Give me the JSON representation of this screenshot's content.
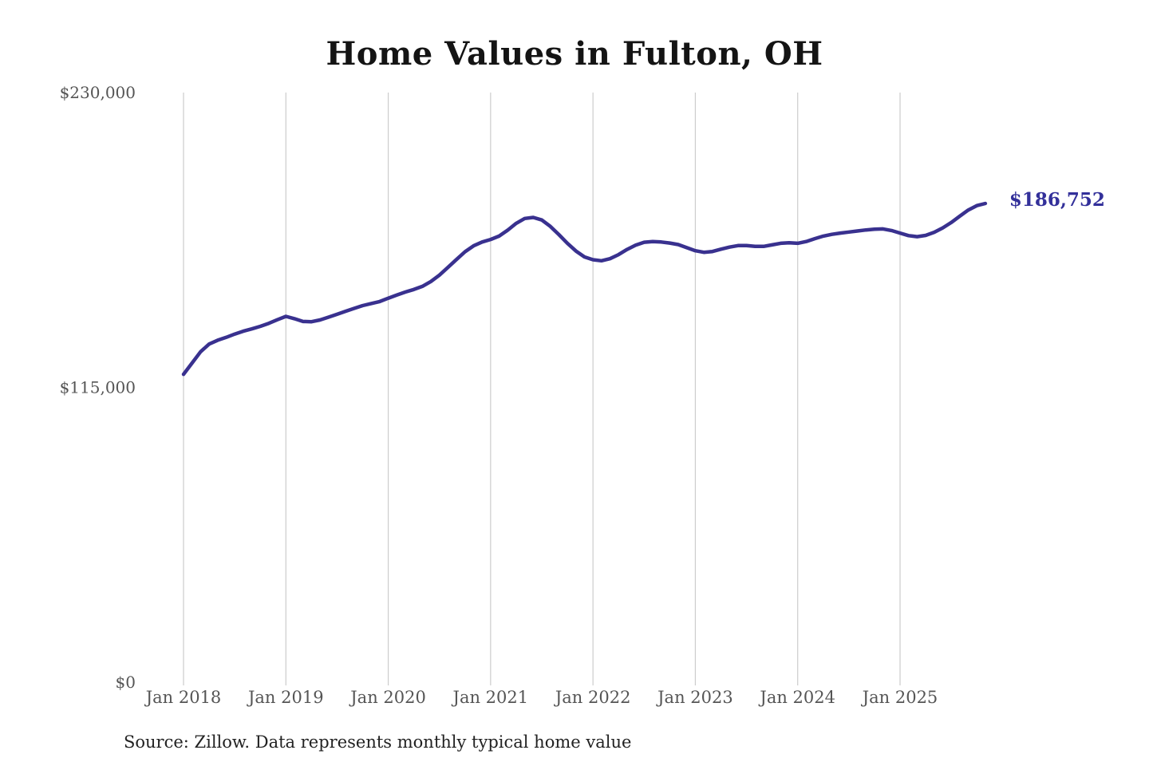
{
  "page": {
    "title": "Home Values in Fulton, OH",
    "source_note": "Source: Zillow. Data represents monthly typical home value",
    "end_label": "$186,752"
  },
  "colors": {
    "line": "#39318f",
    "annotation": "#33309a",
    "grid": "#cccccc",
    "axis_text": "#555555",
    "title_text": "#141414",
    "source_text": "#222222",
    "background": "#ffffff"
  },
  "chart_data": {
    "type": "line",
    "title": "Home Values in Fulton, OH",
    "xlabel": "",
    "ylabel": "",
    "ylim": [
      0,
      230000
    ],
    "grid": "vertical-only",
    "legend": "none",
    "y_ticks": [
      {
        "value": 0,
        "label": "$0"
      },
      {
        "value": 115000,
        "label": "$115,000"
      },
      {
        "value": 230000,
        "label": "$230,000"
      }
    ],
    "x_ticks": [
      {
        "month_index": 0,
        "label": "Jan 2018"
      },
      {
        "month_index": 12,
        "label": "Jan 2019"
      },
      {
        "month_index": 24,
        "label": "Jan 2020"
      },
      {
        "month_index": 36,
        "label": "Jan 2021"
      },
      {
        "month_index": 48,
        "label": "Jan 2022"
      },
      {
        "month_index": 60,
        "label": "Jan 2023"
      },
      {
        "month_index": 72,
        "label": "Jan 2024"
      },
      {
        "month_index": 84,
        "label": "Jan 2025"
      }
    ],
    "series": [
      {
        "name": "Monthly typical home value",
        "unit": "USD",
        "start": "2018-01",
        "frequency": "monthly",
        "values": [
          120100,
          124500,
          128900,
          131900,
          133400,
          134500,
          135800,
          136900,
          137800,
          138800,
          140000,
          141400,
          142700,
          141800,
          140700,
          140600,
          141300,
          142400,
          143500,
          144700,
          145800,
          146900,
          147700,
          148500,
          149800,
          151000,
          152200,
          153200,
          154400,
          156300,
          158800,
          161800,
          164900,
          167900,
          170200,
          171700,
          172700,
          174000,
          176300,
          179000,
          180900,
          181300,
          180300,
          177800,
          174600,
          171200,
          168200,
          165900,
          164800,
          164400,
          165200,
          166800,
          168800,
          170500,
          171600,
          171900,
          171700,
          171300,
          170700,
          169500,
          168300,
          167700,
          168000,
          168900,
          169700,
          170300,
          170300,
          170000,
          170000,
          170600,
          171200,
          171400,
          171200,
          171900,
          173000,
          174000,
          174700,
          175200,
          175600,
          176000,
          176400,
          176700,
          176800,
          176200,
          175200,
          174200,
          173800,
          174300,
          175500,
          177200,
          179300,
          181800,
          184200,
          185900,
          186752
        ]
      }
    ],
    "end_annotation": {
      "text": "$186,752",
      "value": 186752
    }
  }
}
